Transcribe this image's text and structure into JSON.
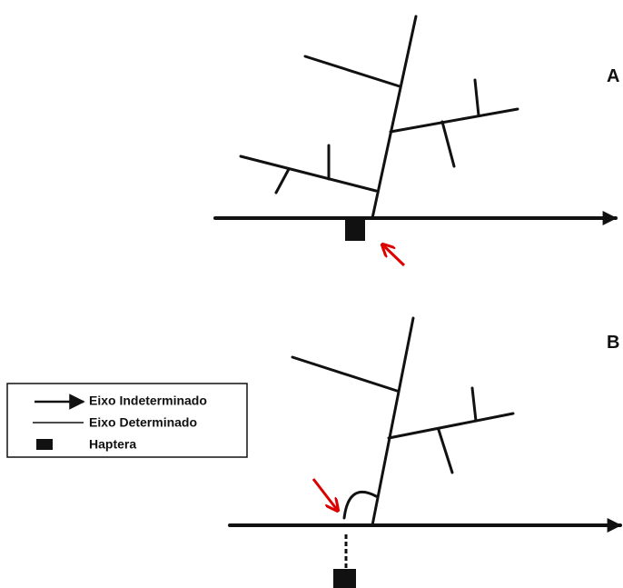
{
  "panels": [
    {
      "label": "A"
    },
    {
      "label": "B"
    }
  ],
  "legend": [
    {
      "label": "Eixo Indeterminado"
    },
    {
      "label": "Eixo Determinado"
    },
    {
      "label": "Haptera"
    }
  ]
}
